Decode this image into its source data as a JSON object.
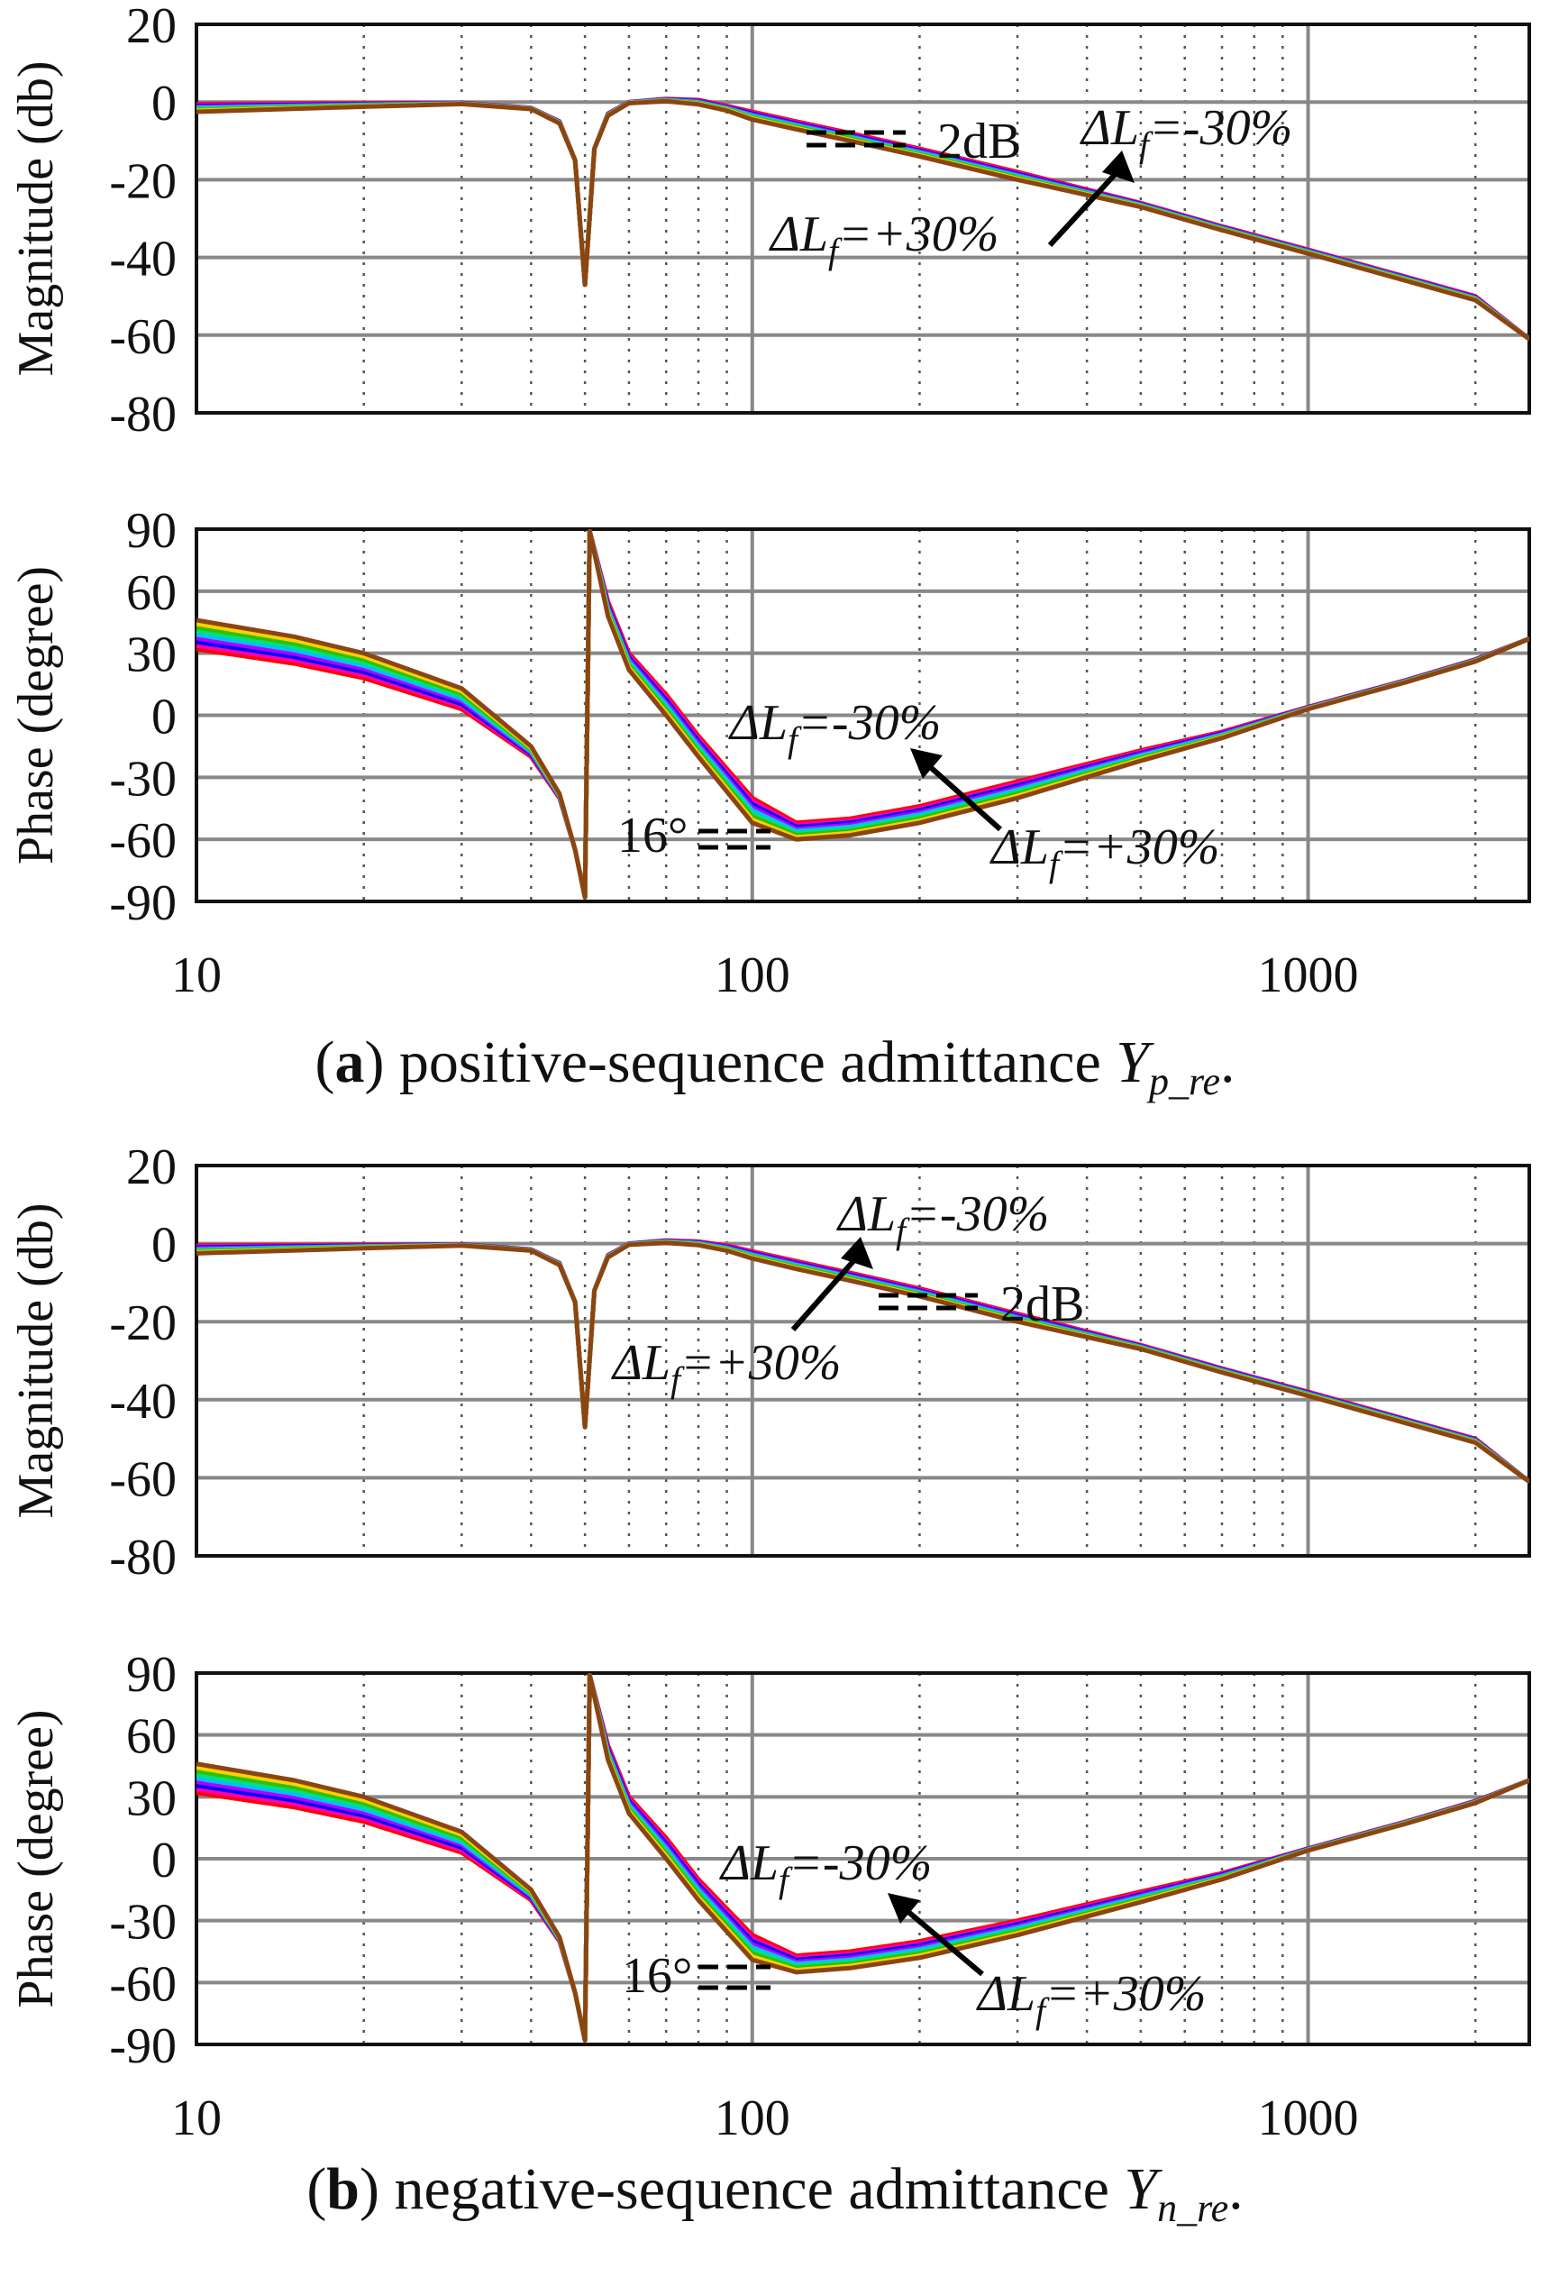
{
  "figure": {
    "x_tick_labels": [
      "10",
      "100",
      "1000"
    ],
    "panels": [
      {
        "caption": {
          "letter": "a",
          "text": "positive-sequence admittance",
          "symbol": "Y",
          "subscript": "p_re",
          "end": "."
        },
        "magnitude": {
          "ylabel": "Magnitude (db)",
          "ylim": [
            -80,
            20
          ],
          "yticks": [
            "20",
            "0",
            "-20",
            "-40",
            "-60",
            "-80"
          ],
          "annotations": {
            "top": "ΔLf=-30%",
            "bottom": "ΔLf=+30%",
            "gap": "2dB"
          }
        },
        "phase": {
          "ylabel": "Phase (degree)",
          "ylim": [
            -90,
            90
          ],
          "yticks": [
            "90",
            "60",
            "30",
            "0",
            "-30",
            "-60",
            "-90"
          ],
          "annotations": {
            "top": "ΔLf=-30%",
            "bottom": "ΔLf=+30%",
            "gap": "16°"
          }
        }
      },
      {
        "caption": {
          "letter": "b",
          "text": "negative-sequence admittance",
          "symbol": "Y",
          "subscript": "n_re",
          "end": "."
        },
        "magnitude": {
          "ylabel": "Magnitude (db)",
          "ylim": [
            -80,
            20
          ],
          "yticks": [
            "20",
            "0",
            "-20",
            "-40",
            "-60",
            "-80"
          ],
          "annotations": {
            "top": "ΔLf=-30%",
            "bottom": "ΔLf=+30%",
            "gap": "2dB"
          }
        },
        "phase": {
          "ylabel": "Phase (degree)",
          "ylim": [
            -90,
            90
          ],
          "yticks": [
            "90",
            "60",
            "30",
            "0",
            "-30",
            "-60",
            "-90"
          ],
          "annotations": {
            "top": "ΔLf=-30%",
            "bottom": "ΔLf=+30%",
            "gap": "16°"
          }
        }
      }
    ]
  },
  "chart_data": [
    {
      "type": "line",
      "panel": "a",
      "plot": "magnitude",
      "x_scale": "log",
      "xlim": [
        10,
        2500
      ],
      "ylim": [
        -80,
        20
      ],
      "grid": true,
      "series_colors": [
        "#ff0000",
        "#ff00aa",
        "#0000ff",
        "#b000ff",
        "#00bfff",
        "#00e080",
        "#30c000",
        "#ffd000",
        "#8b4513"
      ],
      "x": [
        10,
        20,
        30,
        40,
        45,
        48,
        50,
        52,
        55,
        60,
        70,
        80,
        90,
        100,
        120,
        150,
        200,
        300,
        500,
        700,
        1000,
        1500,
        2000,
        2500
      ],
      "series": [
        {
          "name": "ΔLf=-30%",
          "values": [
            -0.5,
            -0.3,
            -0.2,
            -1.5,
            -5,
            -15,
            -47,
            -12,
            -3,
            0,
            0.8,
            0.5,
            -1,
            -2.5,
            -5,
            -8,
            -12,
            -18,
            -26,
            -32,
            -38,
            -45,
            -50,
            -61
          ]
        },
        {
          "name": "ΔLf=+30%",
          "values": [
            -2.5,
            -1.2,
            -0.5,
            -1.8,
            -5.5,
            -15,
            -47,
            -12,
            -3.5,
            -0.3,
            0.2,
            -0.6,
            -2.2,
            -4.5,
            -7,
            -10,
            -14,
            -20,
            -27,
            -33,
            -39,
            -46,
            -51,
            -61
          ]
        }
      ]
    },
    {
      "type": "line",
      "panel": "a",
      "plot": "phase",
      "x_scale": "log",
      "xlim": [
        10,
        2500
      ],
      "ylim": [
        -90,
        90
      ],
      "grid": true,
      "x": [
        10,
        15,
        20,
        30,
        40,
        45,
        48,
        50,
        51,
        55,
        60,
        70,
        80,
        100,
        120,
        150,
        200,
        300,
        500,
        700,
        1000,
        1500,
        2000,
        2500
      ],
      "series": [
        {
          "name": "ΔLf=-30%",
          "values": [
            32,
            25,
            18,
            3,
            -20,
            -40,
            -65,
            -88,
            89,
            55,
            30,
            10,
            -10,
            -40,
            -52,
            -50,
            -44,
            -32,
            -17,
            -8,
            4,
            17,
            27,
            37
          ]
        },
        {
          "name": "ΔLf=+30%",
          "values": [
            46,
            38,
            30,
            13,
            -15,
            -38,
            -65,
            -88,
            89,
            48,
            22,
            0,
            -20,
            -52,
            -60,
            -58,
            -52,
            -40,
            -22,
            -11,
            3,
            16,
            26,
            37
          ]
        }
      ]
    },
    {
      "type": "line",
      "panel": "b",
      "plot": "magnitude",
      "x_scale": "log",
      "xlim": [
        10,
        2500
      ],
      "ylim": [
        -80,
        20
      ],
      "grid": true,
      "x": [
        10,
        20,
        30,
        40,
        45,
        48,
        50,
        52,
        55,
        60,
        70,
        80,
        90,
        100,
        120,
        150,
        200,
        300,
        500,
        700,
        1000,
        1500,
        2000,
        2500
      ],
      "series": [
        {
          "name": "ΔLf=-30%",
          "values": [
            -0.5,
            -0.3,
            -0.2,
            -1.5,
            -5,
            -15,
            -47,
            -12,
            -3,
            0,
            0.8,
            0.5,
            -0.5,
            -2,
            -4.5,
            -7.5,
            -11.5,
            -18,
            -26,
            -32,
            -38,
            -45,
            -50,
            -61
          ]
        },
        {
          "name": "ΔLf=+30%",
          "values": [
            -2.5,
            -1.2,
            -0.5,
            -1.8,
            -5.5,
            -15,
            -47,
            -12,
            -3.5,
            -0.3,
            0.2,
            -0.4,
            -1.8,
            -3.8,
            -6.5,
            -9.5,
            -13.5,
            -20,
            -27,
            -33,
            -39,
            -46,
            -51,
            -61
          ]
        }
      ]
    },
    {
      "type": "line",
      "panel": "b",
      "plot": "phase",
      "x_scale": "log",
      "xlim": [
        10,
        2500
      ],
      "ylim": [
        -90,
        90
      ],
      "grid": true,
      "x": [
        10,
        15,
        20,
        30,
        40,
        45,
        48,
        50,
        51,
        55,
        60,
        70,
        80,
        100,
        120,
        150,
        200,
        300,
        500,
        700,
        1000,
        1500,
        2000,
        2500
      ],
      "series": [
        {
          "name": "ΔLf=-30%",
          "values": [
            32,
            25,
            18,
            3,
            -20,
            -40,
            -65,
            -88,
            89,
            55,
            30,
            10,
            -10,
            -37,
            -47,
            -45,
            -40,
            -30,
            -16,
            -7,
            5,
            18,
            28,
            38
          ]
        },
        {
          "name": "ΔLf=+30%",
          "values": [
            46,
            38,
            30,
            13,
            -15,
            -38,
            -65,
            -88,
            89,
            48,
            22,
            0,
            -20,
            -49,
            -55,
            -53,
            -48,
            -37,
            -21,
            -10,
            4,
            17,
            27,
            38
          ]
        }
      ]
    }
  ]
}
